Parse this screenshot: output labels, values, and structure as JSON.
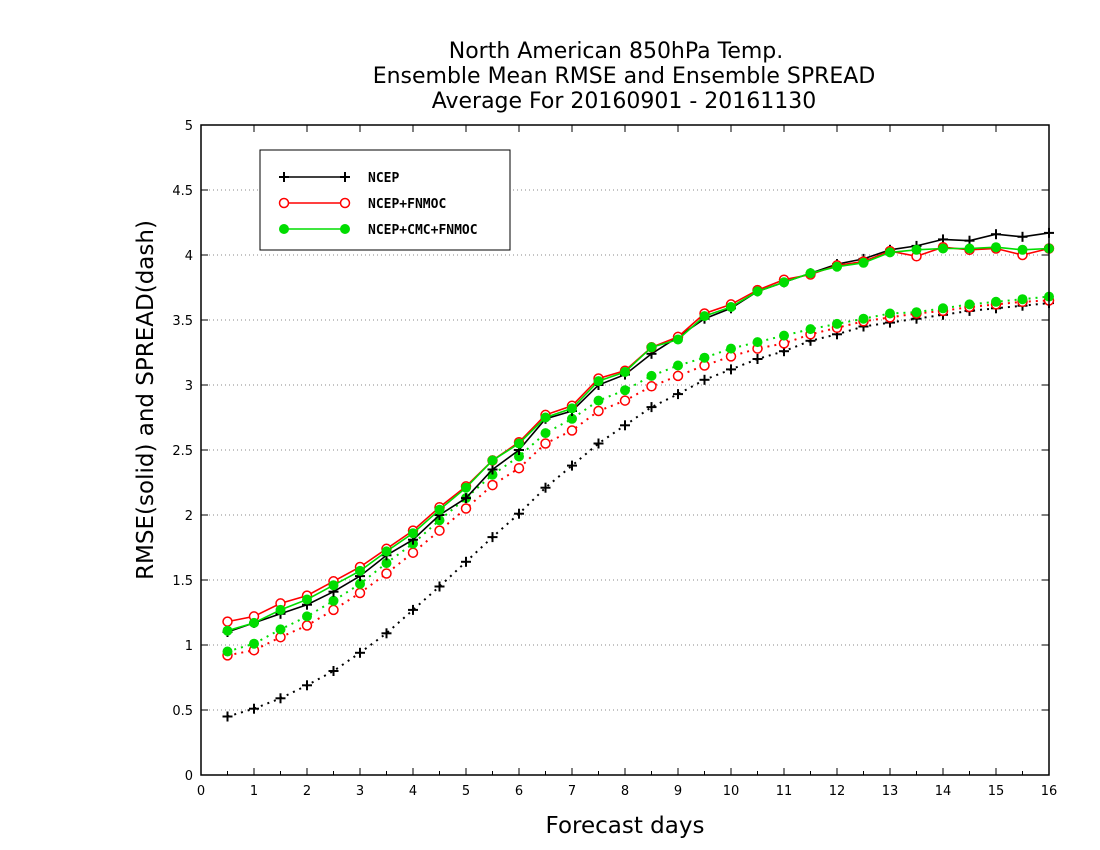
{
  "chart_data": {
    "type": "line",
    "title": [
      "North American 850hPa Temp.",
      "Ensemble Mean RMSE and Ensemble SPREAD",
      "Average For 20160901 - 20161130"
    ],
    "xlabel": "Forecast days",
    "ylabel": "RMSE(solid) and SPREAD(dash)",
    "xlim": [
      0,
      16
    ],
    "ylim": [
      0,
      5
    ],
    "xticks": [
      0,
      1,
      2,
      3,
      4,
      5,
      6,
      7,
      8,
      9,
      10,
      11,
      12,
      13,
      14,
      15,
      16
    ],
    "yticks": [
      0,
      0.5,
      1,
      1.5,
      2,
      2.5,
      3,
      3.5,
      4,
      4.5,
      5
    ],
    "xtick_labels": [
      "0",
      "1",
      "2",
      "3",
      "4",
      "5",
      "6",
      "7",
      "8",
      "9",
      "10",
      "11",
      "12",
      "13",
      "14",
      "15",
      "16"
    ],
    "ytick_labels": [
      "0",
      "0.5",
      "1",
      "1.5",
      "2",
      "2.5",
      "3",
      "3.5",
      "4",
      "4.5",
      "5"
    ],
    "grid": "horizontal dotted",
    "legend_position": "top-left",
    "x": [
      0.5,
      1.0,
      1.5,
      2.0,
      2.5,
      3.0,
      3.5,
      4.0,
      4.5,
      5.0,
      5.5,
      6.0,
      6.5,
      7.0,
      7.5,
      8.0,
      8.5,
      9.0,
      9.5,
      10.0,
      10.5,
      11.0,
      11.5,
      12.0,
      12.5,
      13.0,
      13.5,
      14.0,
      14.5,
      15.0,
      15.5,
      16.0
    ],
    "series": [
      {
        "name": "NCEP",
        "color": "#000000",
        "marker": "plus",
        "rmse": [
          1.1,
          1.17,
          1.24,
          1.31,
          1.41,
          1.53,
          1.69,
          1.81,
          2.0,
          2.13,
          2.35,
          2.5,
          2.74,
          2.8,
          3.0,
          3.08,
          3.24,
          3.37,
          3.51,
          3.59,
          3.72,
          3.79,
          3.86,
          3.93,
          3.97,
          4.04,
          4.07,
          4.12,
          4.11,
          4.16,
          4.14,
          4.17
        ],
        "spread": [
          0.45,
          0.51,
          0.59,
          0.69,
          0.8,
          0.94,
          1.09,
          1.27,
          1.45,
          1.64,
          1.83,
          2.01,
          2.21,
          2.38,
          2.55,
          2.69,
          2.83,
          2.93,
          3.04,
          3.12,
          3.2,
          3.26,
          3.34,
          3.39,
          3.45,
          3.48,
          3.51,
          3.54,
          3.57,
          3.59,
          3.61,
          3.63
        ]
      },
      {
        "name": "NCEP+FNMOC",
        "color": "#ff0000",
        "marker": "open-circle",
        "rmse": [
          1.18,
          1.22,
          1.32,
          1.38,
          1.49,
          1.6,
          1.74,
          1.88,
          2.06,
          2.22,
          2.42,
          2.56,
          2.77,
          2.84,
          3.05,
          3.11,
          3.29,
          3.37,
          3.55,
          3.62,
          3.73,
          3.81,
          3.85,
          3.92,
          3.95,
          4.03,
          3.99,
          4.06,
          4.04,
          4.05,
          4.0,
          4.05
        ],
        "spread": [
          0.92,
          0.96,
          1.06,
          1.15,
          1.27,
          1.4,
          1.55,
          1.71,
          1.88,
          2.05,
          2.23,
          2.36,
          2.55,
          2.65,
          2.8,
          2.88,
          2.99,
          3.07,
          3.15,
          3.22,
          3.28,
          3.32,
          3.39,
          3.44,
          3.49,
          3.52,
          3.55,
          3.57,
          3.6,
          3.62,
          3.64,
          3.65
        ]
      },
      {
        "name": "NCEP+CMC+FNMOC",
        "color": "#00dd00",
        "marker": "filled-circle",
        "rmse": [
          1.11,
          1.17,
          1.27,
          1.35,
          1.46,
          1.57,
          1.72,
          1.86,
          2.04,
          2.21,
          2.42,
          2.55,
          2.75,
          2.82,
          3.03,
          3.1,
          3.29,
          3.35,
          3.53,
          3.6,
          3.72,
          3.79,
          3.86,
          3.91,
          3.94,
          4.02,
          4.04,
          4.05,
          4.05,
          4.06,
          4.04,
          4.05
        ],
        "spread": [
          0.95,
          1.01,
          1.12,
          1.22,
          1.34,
          1.47,
          1.63,
          1.78,
          1.96,
          2.13,
          2.31,
          2.45,
          2.63,
          2.74,
          2.88,
          2.96,
          3.07,
          3.15,
          3.21,
          3.28,
          3.33,
          3.38,
          3.43,
          3.47,
          3.51,
          3.55,
          3.56,
          3.59,
          3.62,
          3.64,
          3.66,
          3.68
        ]
      }
    ]
  }
}
